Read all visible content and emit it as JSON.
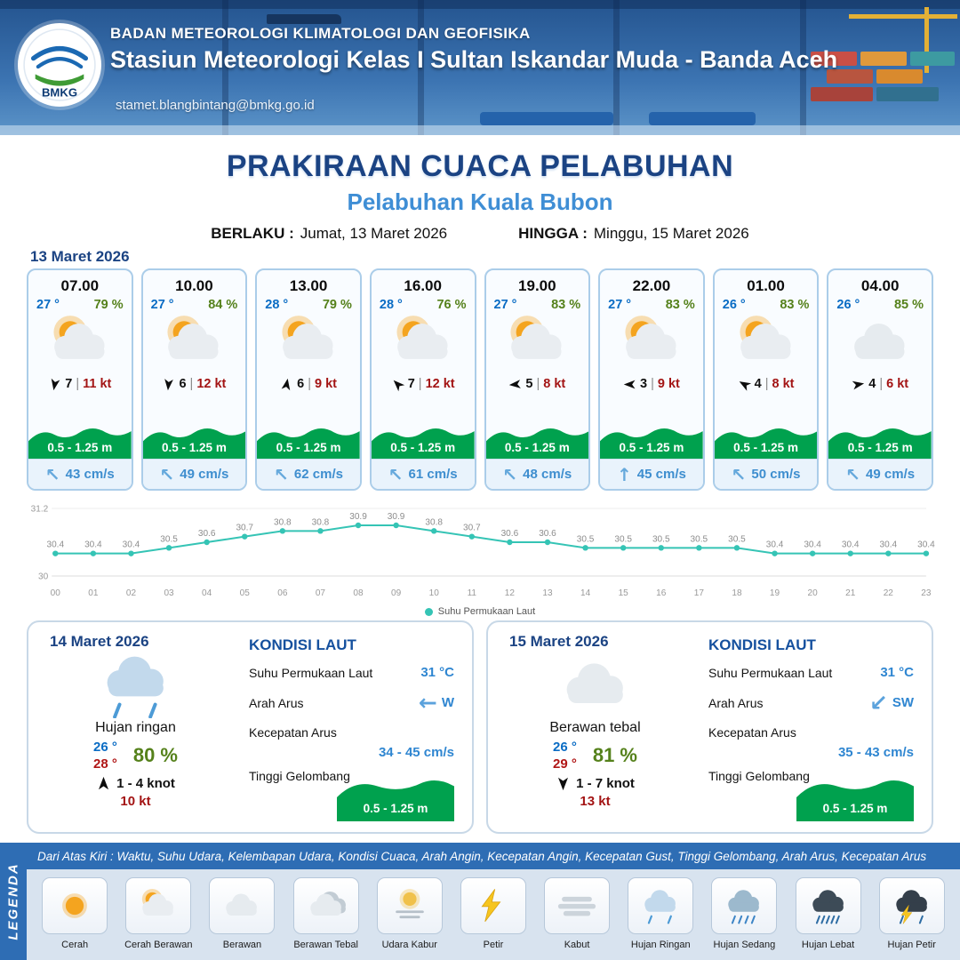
{
  "header": {
    "agency": "BADAN METEOROLOGI KLIMATOLOGI DAN GEOFISIKA",
    "station": "Stasiun Meteorologi Kelas I Sultan Iskandar Muda - Banda Aceh",
    "email": "stamet.blangbintang@bmkg.go.id",
    "logo_text": "BMKG"
  },
  "title": {
    "main": "PRAKIRAAN CUACA PELABUHAN",
    "port": "Pelabuhan Kuala Bubon",
    "valid_label": "BERLAKU :",
    "valid_value": "Jumat, 13 Maret 2026",
    "until_label": "HINGGA :",
    "until_value": "Minggu, 15 Maret 2026"
  },
  "forecast": {
    "date": "13 Maret 2026",
    "sep": "|",
    "cards": [
      {
        "time": "07.00",
        "temp": "27 °",
        "humidity": "79 %",
        "weather_icon": "cerah-berawan",
        "wind_speed": "7",
        "gust": "11 kt",
        "wind_deg": 190,
        "wave": "0.5 - 1.25 m",
        "current_dir": "NW",
        "current": "43 cm/s"
      },
      {
        "time": "10.00",
        "temp": "27 °",
        "humidity": "84 %",
        "weather_icon": "cerah-berawan",
        "wind_speed": "6",
        "gust": "12 kt",
        "wind_deg": 185,
        "wave": "0.5 - 1.25 m",
        "current_dir": "NW",
        "current": "49 cm/s"
      },
      {
        "time": "13.00",
        "temp": "28 °",
        "humidity": "79 %",
        "weather_icon": "cerah-berawan",
        "wind_speed": "6",
        "gust": "9 kt",
        "wind_deg": 10,
        "wave": "0.5 - 1.25 m",
        "current_dir": "NW",
        "current": "62 cm/s"
      },
      {
        "time": "16.00",
        "temp": "28 °",
        "humidity": "76 %",
        "weather_icon": "cerah-berawan",
        "wind_speed": "7",
        "gust": "12 kt",
        "wind_deg": 315,
        "wave": "0.5 - 1.25 m",
        "current_dir": "NW",
        "current": "61 cm/s"
      },
      {
        "time": "19.00",
        "temp": "27 °",
        "humidity": "83 %",
        "weather_icon": "cerah-berawan",
        "wind_speed": "5",
        "gust": "8 kt",
        "wind_deg": 265,
        "wave": "0.5 - 1.25 m",
        "current_dir": "NW",
        "current": "48 cm/s"
      },
      {
        "time": "22.00",
        "temp": "27 °",
        "humidity": "83 %",
        "weather_icon": "cerah-berawan",
        "wind_speed": "3",
        "gust": "9 kt",
        "wind_deg": 270,
        "wave": "0.5 - 1.25 m",
        "current_dir": "N",
        "current": "45 cm/s"
      },
      {
        "time": "01.00",
        "temp": "26 °",
        "humidity": "83 %",
        "weather_icon": "cerah-berawan",
        "wind_speed": "4",
        "gust": "8 kt",
        "wind_deg": 300,
        "wave": "0.5 - 1.25 m",
        "current_dir": "NW",
        "current": "50 cm/s"
      },
      {
        "time": "04.00",
        "temp": "26 °",
        "humidity": "85 %",
        "weather_icon": "berawan",
        "wind_speed": "4",
        "gust": "6 kt",
        "wind_deg": 80,
        "wave": "0.5 - 1.25 m",
        "current_dir": "NW",
        "current": "49 cm/s"
      }
    ]
  },
  "chart_data": {
    "type": "line",
    "x": [
      "00",
      "01",
      "02",
      "03",
      "04",
      "05",
      "06",
      "07",
      "08",
      "09",
      "10",
      "11",
      "12",
      "13",
      "14",
      "15",
      "16",
      "17",
      "18",
      "19",
      "20",
      "21",
      "22",
      "23"
    ],
    "series": [
      {
        "name": "Suhu Permukaan Laut",
        "values": [
          30.4,
          30.4,
          30.4,
          30.5,
          30.6,
          30.7,
          30.8,
          30.8,
          30.9,
          30.9,
          30.8,
          30.7,
          30.6,
          30.6,
          30.5,
          30.5,
          30.5,
          30.5,
          30.5,
          30.4,
          30.4,
          30.4,
          30.4,
          30.4
        ]
      }
    ],
    "title": "",
    "xlabel": "",
    "ylabel": "",
    "ylim": [
      30,
      31.2
    ],
    "ytick_labels": [
      "31.2",
      "30"
    ],
    "legend_position": "bottom-center",
    "grid": false,
    "line_color": "#35c4b5"
  },
  "days": [
    {
      "date": "14 Maret 2026",
      "weather_icon": "hujan-ringan",
      "condition": "Hujan ringan",
      "temp_min": "26 °",
      "temp_max": "28 °",
      "humidity": "80 %",
      "wind_deg": 0,
      "wind": "1 - 4 knot",
      "gust": "10 kt",
      "sea": {
        "title": "KONDISI LAUT",
        "sst_label": "Suhu Permukaan Laut",
        "sst": "31 °C",
        "dir_label": "Arah Arus",
        "dir": "W",
        "speed_label": "Kecepatan Arus",
        "speed": "34 - 45 cm/s",
        "wave_label": "Tinggi Gelombang",
        "wave": "0.5 - 1.25 m"
      }
    },
    {
      "date": "15 Maret 2026",
      "weather_icon": "berawan",
      "condition": "Berawan tebal",
      "temp_min": "26 °",
      "temp_max": "29 °",
      "humidity": "81 %",
      "wind_deg": 180,
      "wind": "1 - 7 knot",
      "gust": "13 kt",
      "sea": {
        "title": "KONDISI LAUT",
        "sst_label": "Suhu Permukaan Laut",
        "sst": "31 °C",
        "dir_label": "Arah Arus",
        "dir": "SW",
        "speed_label": "Kecepatan Arus",
        "speed": "35 - 43 cm/s",
        "wave_label": "Tinggi Gelombang",
        "wave": "0.5 - 1.25 m"
      }
    }
  ],
  "legend": {
    "sidebar": "LEGENDA",
    "description": "Dari Atas Kiri : Waktu, Suhu Udara, Kelembapan Udara, Kondisi Cuaca, Arah Angin, Kecepatan Angin, Kecepatan Gust, Tinggi Gelombang, Arah Arus, Kecepatan Arus",
    "items": [
      {
        "label": "Cerah",
        "icon": "cerah"
      },
      {
        "label": "Cerah Berawan",
        "icon": "cerah-berawan"
      },
      {
        "label": "Berawan",
        "icon": "berawan"
      },
      {
        "label": "Berawan Tebal",
        "icon": "berawan-tebal"
      },
      {
        "label": "Udara Kabur",
        "icon": "udara-kabur"
      },
      {
        "label": "Petir",
        "icon": "petir"
      },
      {
        "label": "Kabut",
        "icon": "kabut"
      },
      {
        "label": "Hujan Ringan",
        "icon": "hujan-ringan"
      },
      {
        "label": "Hujan Sedang",
        "icon": "hujan-sedang"
      },
      {
        "label": "Hujan Lebat",
        "icon": "hujan-lebat"
      },
      {
        "label": "Hujan Petir",
        "icon": "hujan-petir"
      }
    ]
  },
  "colors": {
    "accent_navy": "#1b4383",
    "port_blue": "#3f8ed5",
    "temp_blue": "#0a6cc4",
    "humidity_green": "#55811b",
    "gust_red": "#a31414",
    "wave_green": "#00a14e",
    "current_blue": "#3e8ecf",
    "chart_teal": "#35c4b5",
    "legend_blue": "#2e6db4"
  }
}
